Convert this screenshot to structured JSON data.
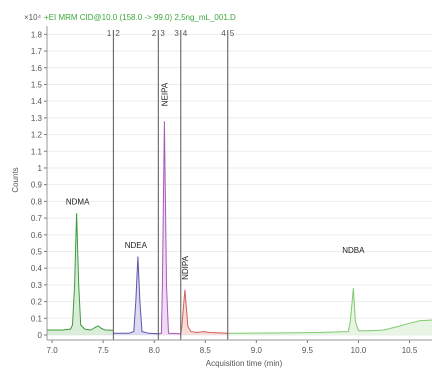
{
  "chart_data": {
    "type": "line",
    "header": "+EI MRM CID@10.0 (158.0 -> 99.0) 2,5ng_mL_001.D",
    "y_multiplier": "×10⁴",
    "xlabel": "Acquisition time (min)",
    "ylabel": "Counts",
    "xlim": [
      6.95,
      10.72
    ],
    "ylim": [
      -0.03,
      1.85
    ],
    "x_ticks": [
      7.0,
      7.5,
      8.0,
      8.5,
      9.0,
      9.5,
      10.0,
      10.5
    ],
    "x_tick_labels": [
      "7.0",
      "7.5",
      "8.0",
      "8.5",
      "9.0",
      "9.5",
      "10.0",
      "10.5"
    ],
    "y_ticks": [
      0,
      0.1,
      0.2,
      0.3,
      0.4,
      0.5,
      0.6,
      0.7,
      0.8,
      0.9,
      1.0,
      1.1,
      1.2,
      1.3,
      1.4,
      1.5,
      1.6,
      1.7,
      1.8
    ],
    "y_tick_labels": [
      "0",
      "0.1",
      "0.2",
      "0.3",
      "0.4",
      "0.5",
      "0.6",
      "0.7",
      "0.8",
      "0.9",
      "1",
      "1.1",
      "1.2",
      "1.3",
      "1.4",
      "1.5",
      "1.6",
      "1.7",
      "1.8"
    ],
    "segment_markers": [
      {
        "x": 7.6,
        "left_label": "1",
        "right_label": "2"
      },
      {
        "x": 8.04,
        "left_label": "2",
        "right_label": "3"
      },
      {
        "x": 8.26,
        "left_label": "3",
        "right_label": "4"
      },
      {
        "x": 8.72,
        "left_label": "4",
        "right_label": "5"
      }
    ],
    "series": [
      {
        "name": "NDMA",
        "color": "#3f9a3f",
        "label_x": 7.25,
        "label_y": 0.78,
        "points": [
          [
            6.95,
            0.03
          ],
          [
            7.1,
            0.03
          ],
          [
            7.18,
            0.035
          ],
          [
            7.2,
            0.06
          ],
          [
            7.22,
            0.3
          ],
          [
            7.24,
            0.73
          ],
          [
            7.26,
            0.3
          ],
          [
            7.28,
            0.06
          ],
          [
            7.32,
            0.035
          ],
          [
            7.38,
            0.03
          ],
          [
            7.42,
            0.045
          ],
          [
            7.45,
            0.055
          ],
          [
            7.48,
            0.04
          ],
          [
            7.52,
            0.03
          ],
          [
            7.6,
            0.028
          ]
        ]
      },
      {
        "name": "NDEA",
        "color": "#5a57a8",
        "label_x": 7.82,
        "label_y": 0.52,
        "points": [
          [
            7.6,
            0.01
          ],
          [
            7.75,
            0.01
          ],
          [
            7.8,
            0.02
          ],
          [
            7.82,
            0.2
          ],
          [
            7.84,
            0.47
          ],
          [
            7.86,
            0.2
          ],
          [
            7.88,
            0.02
          ],
          [
            7.95,
            0.01
          ],
          [
            8.04,
            0.008
          ]
        ]
      },
      {
        "name": "NEIPA",
        "color": "#a85ab8",
        "label_x": 8.1,
        "label_y": 1.37,
        "label_rotated": true,
        "points": [
          [
            8.04,
            0.008
          ],
          [
            8.07,
            0.01
          ],
          [
            8.08,
            0.3
          ],
          [
            8.1,
            1.28
          ],
          [
            8.12,
            0.3
          ],
          [
            8.14,
            0.01
          ],
          [
            8.26,
            0.008
          ]
        ]
      },
      {
        "name": "NDIPA",
        "color": "#d0605a",
        "label_x": 8.3,
        "label_y": 0.33,
        "label_rotated": true,
        "points": [
          [
            8.26,
            0.01
          ],
          [
            8.27,
            0.05
          ],
          [
            8.3,
            0.27
          ],
          [
            8.33,
            0.05
          ],
          [
            8.36,
            0.02
          ],
          [
            8.42,
            0.015
          ],
          [
            8.48,
            0.02
          ],
          [
            8.55,
            0.015
          ],
          [
            8.72,
            0.01
          ]
        ]
      },
      {
        "name": "NDBA",
        "color": "#7ecb6e",
        "label_x": 9.95,
        "label_y": 0.49,
        "points": [
          [
            8.72,
            0.01
          ],
          [
            9.2,
            0.012
          ],
          [
            9.6,
            0.015
          ],
          [
            9.9,
            0.02
          ],
          [
            9.92,
            0.08
          ],
          [
            9.95,
            0.28
          ],
          [
            9.97,
            0.08
          ],
          [
            10.0,
            0.025
          ],
          [
            10.1,
            0.025
          ],
          [
            10.25,
            0.03
          ],
          [
            10.38,
            0.05
          ],
          [
            10.5,
            0.07
          ],
          [
            10.6,
            0.085
          ],
          [
            10.72,
            0.09
          ]
        ]
      }
    ]
  }
}
